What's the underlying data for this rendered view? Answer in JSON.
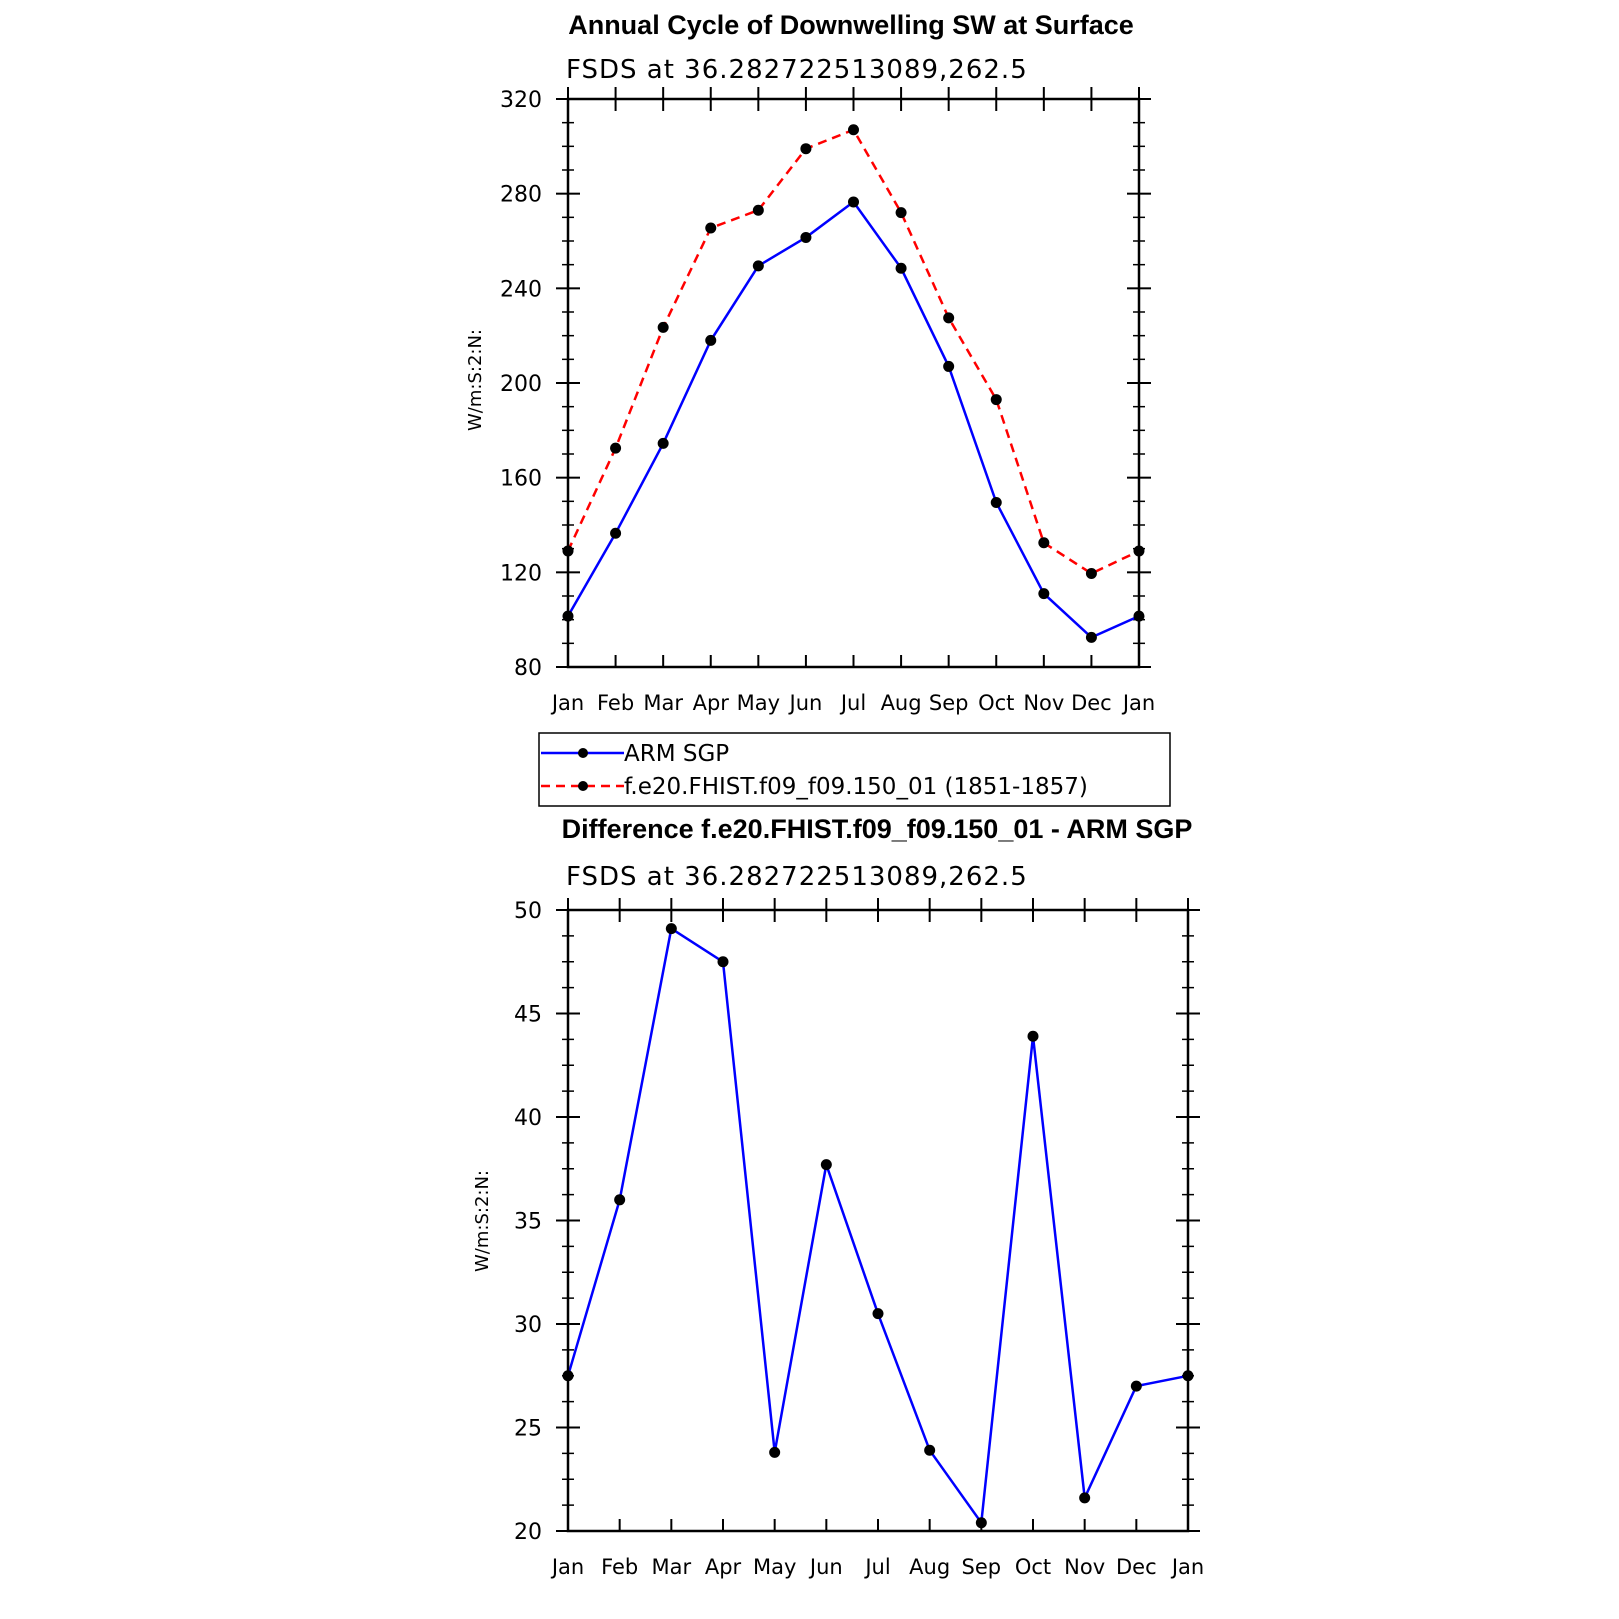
{
  "chart_data": [
    {
      "type": "line",
      "title": "Annual Cycle of Downwelling SW at Surface",
      "subtitle": "FSDS at 36.282722513089,262.5",
      "ylabel": "W/m:S:2:N:",
      "xlabel": "",
      "categories": [
        "Jan",
        "Feb",
        "Mar",
        "Apr",
        "May",
        "Jun",
        "Jul",
        "Aug",
        "Sep",
        "Oct",
        "Nov",
        "Dec",
        "Jan"
      ],
      "ylim": [
        80,
        320
      ],
      "yticks": [
        80,
        120,
        160,
        200,
        240,
        280,
        320
      ],
      "series": [
        {
          "name": "ARM SGP",
          "color": "#0000ff",
          "dash": "solid",
          "values": [
            101.5,
            136.5,
            174.5,
            218,
            249.5,
            261.5,
            276.5,
            248.5,
            207,
            149.5,
            111,
            92.5,
            101.5
          ]
        },
        {
          "name": "f.e20.FHIST.f09_f09.150_01 (1851-1857)",
          "color": "#ff0000",
          "dash": "dashed",
          "values": [
            129,
            172.5,
            223.5,
            265.5,
            273,
            299,
            307,
            272,
            227.5,
            193,
            132.5,
            119.5,
            129
          ]
        }
      ],
      "legend": "bottom",
      "grid": false
    },
    {
      "type": "line",
      "title": "Difference f.e20.FHIST.f09_f09.150_01 - ARM SGP",
      "subtitle": "FSDS at 36.282722513089,262.5",
      "ylabel": "W/m:S:2:N:",
      "xlabel": "",
      "categories": [
        "Jan",
        "Feb",
        "Mar",
        "Apr",
        "May",
        "Jun",
        "Jul",
        "Aug",
        "Sep",
        "Oct",
        "Nov",
        "Dec",
        "Jan"
      ],
      "ylim": [
        20,
        50
      ],
      "yticks": [
        20,
        25,
        30,
        35,
        40,
        45,
        50
      ],
      "series": [
        {
          "color": "#0000ff",
          "dash": "solid",
          "values": [
            27.5,
            36,
            49.1,
            47.5,
            23.8,
            37.7,
            30.5,
            23.9,
            20.4,
            43.9,
            21.6,
            27,
            27.5
          ]
        }
      ],
      "grid": false
    }
  ],
  "marker_color": "#000000"
}
